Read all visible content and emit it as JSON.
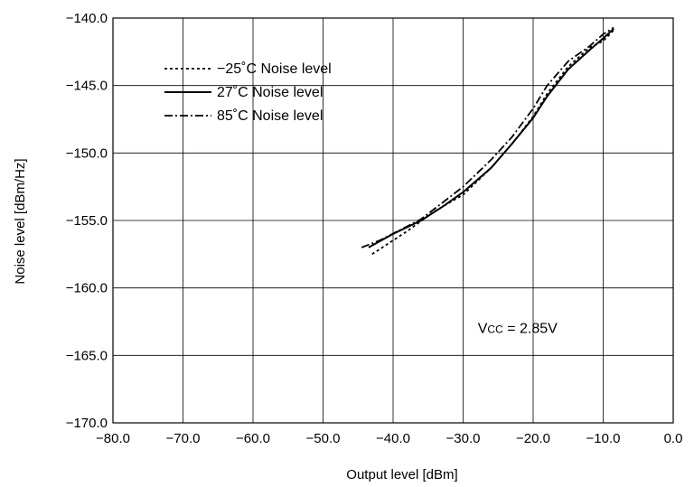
{
  "chart_data": {
    "type": "line",
    "xlabel": "Output level [dBm]",
    "ylabel": "Noise level [dBm/Hz]",
    "xlim": [
      -80,
      0
    ],
    "ylim": [
      -170,
      -140
    ],
    "grid": true,
    "legend_position": "top-left",
    "x_ticks": [
      -80,
      -70,
      -60,
      -50,
      -40,
      -30,
      -20,
      -10,
      0
    ],
    "y_ticks": [
      -140,
      -145,
      -150,
      -155,
      -160,
      -165,
      -170
    ],
    "x_tick_labels": [
      "−80.0",
      "−70.0",
      "−60.0",
      "−50.0",
      "−40.0",
      "−30.0",
      "−20.0",
      "−10.0",
      "0.0"
    ],
    "y_tick_labels": [
      "−140.0",
      "−145.0",
      "−150.0",
      "−155.0",
      "−160.0",
      "−165.0",
      "−170.0"
    ],
    "annotation": {
      "prefix": "V",
      "sub": "CC",
      "suffix": " = 2.85V",
      "x": -15,
      "y": -163
    },
    "series": [
      {
        "name": "−25˚C Noise level",
        "style": "dotted",
        "x": [
          -43,
          -38,
          -34,
          -30,
          -26,
          -23,
          -20,
          -18,
          -15,
          -12,
          -10,
          -8.5
        ],
        "y": [
          -157.5,
          -155.8,
          -154.3,
          -153.1,
          -151.1,
          -149.3,
          -147.3,
          -145.6,
          -143.6,
          -142.2,
          -141.7,
          -140.9
        ]
      },
      {
        "name": "27˚C Noise level",
        "style": "solid",
        "x": [
          -43.5,
          -40,
          -36,
          -33,
          -30,
          -26,
          -23,
          -20,
          -18,
          -15,
          -12,
          -10,
          -8.5
        ],
        "y": [
          -157.0,
          -156.0,
          -155.0,
          -154.0,
          -152.9,
          -151.1,
          -149.3,
          -147.4,
          -145.8,
          -143.8,
          -142.4,
          -141.5,
          -140.8
        ]
      },
      {
        "name": "85˚C Noise level",
        "style": "dashdot",
        "x": [
          -44.5,
          -42,
          -39,
          -36,
          -33,
          -30,
          -26,
          -23,
          -20,
          -18,
          -15,
          -12,
          -10,
          -8.5
        ],
        "y": [
          -157.0,
          -156.5,
          -155.7,
          -154.9,
          -153.7,
          -152.5,
          -150.5,
          -148.8,
          -146.7,
          -145.0,
          -143.2,
          -142.1,
          -141.2,
          -140.7
        ]
      }
    ]
  }
}
